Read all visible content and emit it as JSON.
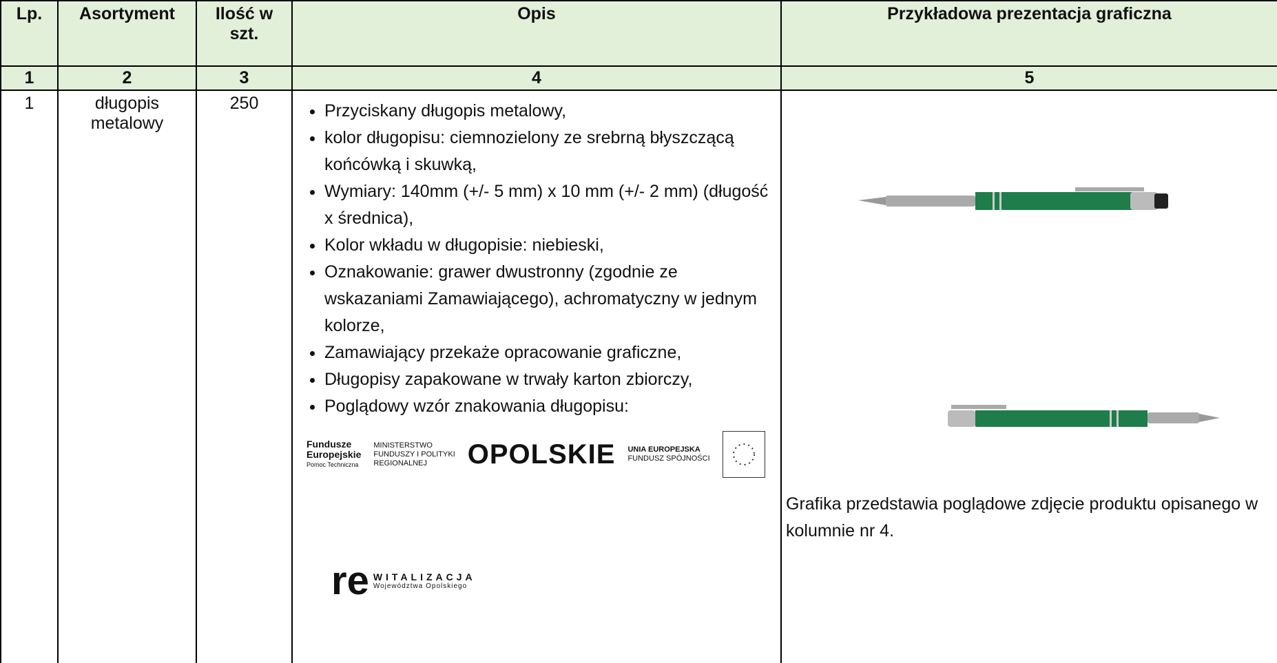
{
  "header": {
    "cells": [
      "Lp.",
      "Asortyment",
      "Ilość w szt.",
      "Opis",
      "Przykładowa prezentacja graficzna"
    ]
  },
  "numbers": [
    "1",
    "2",
    "3",
    "4",
    "5"
  ],
  "row": {
    "lp": "1",
    "asortyment": "długopis metalowy",
    "ilosc": "250",
    "opis": [
      "Przyciskany długopis metalowy,",
      "kolor długopisu: ciemnozielony ze srebrną błyszczącą końcówką i skuwką,",
      "Wymiary: 140mm (+/- 5 mm) x 10 mm (+/- 2 mm) (długość x średnica),",
      "Kolor wkładu w długopisie: niebieski,",
      "Oznakowanie: grawer dwustronny (zgodnie ze wskazaniami Zamawiającego), achromatyczny w jednym kolorze,",
      "Zamawiający przekaże opracowanie graficzne,",
      "Długopisy zapakowane w trwały karton zbiorczy,",
      "Poglądowy wzór znakowania długopisu:"
    ],
    "logos": {
      "fe": [
        "Fundusze",
        "Europejskie",
        "Pomoc Techniczna"
      ],
      "min": [
        "MINISTERSTWO",
        "FUNDUSZY I POLITYKI",
        "REGIONALNEJ"
      ],
      "opolskie": "OPOLSKIE",
      "ue": [
        "UNIA EUROPEJSKA",
        "FUNDUSZ SPÓJNOŚCI"
      ],
      "re": [
        "re",
        "WITALIZACJA",
        "Województwa Opolskiego"
      ]
    },
    "caption": "Grafika przedstawia poglądowe zdjęcie produktu opisanego w kolumnie nr 4."
  }
}
